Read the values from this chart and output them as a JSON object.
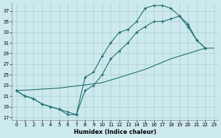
{
  "xlabel": "Humidex (Indice chaleur)",
  "bg_color": "#cce9ee",
  "grid_color": "#aacccc",
  "line_color": "#1a6b6b",
  "xlim": [
    -0.5,
    23.5
  ],
  "ylim": [
    16.5,
    38.5
  ],
  "xticks": [
    0,
    1,
    2,
    3,
    4,
    5,
    6,
    7,
    8,
    9,
    10,
    11,
    12,
    13,
    14,
    15,
    16,
    17,
    18,
    19,
    20,
    21,
    22,
    23
  ],
  "yticks": [
    17,
    19,
    21,
    23,
    25,
    27,
    29,
    31,
    33,
    35,
    37
  ],
  "line_bottom": [
    [
      0,
      22
    ],
    [
      5,
      22.5
    ],
    [
      10,
      23.5
    ],
    [
      15,
      26
    ],
    [
      18,
      28
    ],
    [
      20,
      29
    ],
    [
      22,
      30
    ],
    [
      23,
      30
    ]
  ],
  "line_mid": [
    [
      0,
      22
    ],
    [
      1,
      21
    ],
    [
      2,
      20.5
    ],
    [
      3,
      19.5
    ],
    [
      4,
      19
    ],
    [
      5,
      18.5
    ],
    [
      6,
      18
    ],
    [
      7,
      17.5
    ],
    [
      8,
      22
    ],
    [
      9,
      23
    ],
    [
      10,
      25
    ],
    [
      11,
      28
    ],
    [
      12,
      29.5
    ],
    [
      13,
      31
    ],
    [
      14,
      33
    ],
    [
      15,
      34
    ],
    [
      16,
      35
    ],
    [
      17,
      35
    ],
    [
      18,
      35.5
    ],
    [
      19,
      36
    ],
    [
      20,
      34
    ],
    [
      21,
      31.5
    ],
    [
      22,
      30
    ]
  ],
  "line_top": [
    [
      0,
      22
    ],
    [
      1,
      21
    ],
    [
      2,
      20.5
    ],
    [
      3,
      19.5
    ],
    [
      4,
      19
    ],
    [
      5,
      18.5
    ],
    [
      6,
      17.5
    ],
    [
      7,
      17.5
    ],
    [
      8,
      24.5
    ],
    [
      9,
      25.5
    ],
    [
      10,
      28.5
    ],
    [
      11,
      31
    ],
    [
      12,
      33
    ],
    [
      13,
      33.5
    ],
    [
      14,
      35
    ],
    [
      15,
      37.5
    ],
    [
      16,
      38
    ],
    [
      17,
      38
    ],
    [
      18,
      37.5
    ],
    [
      19,
      36
    ],
    [
      20,
      34.5
    ],
    [
      21,
      31.5
    ],
    [
      22,
      30
    ]
  ]
}
